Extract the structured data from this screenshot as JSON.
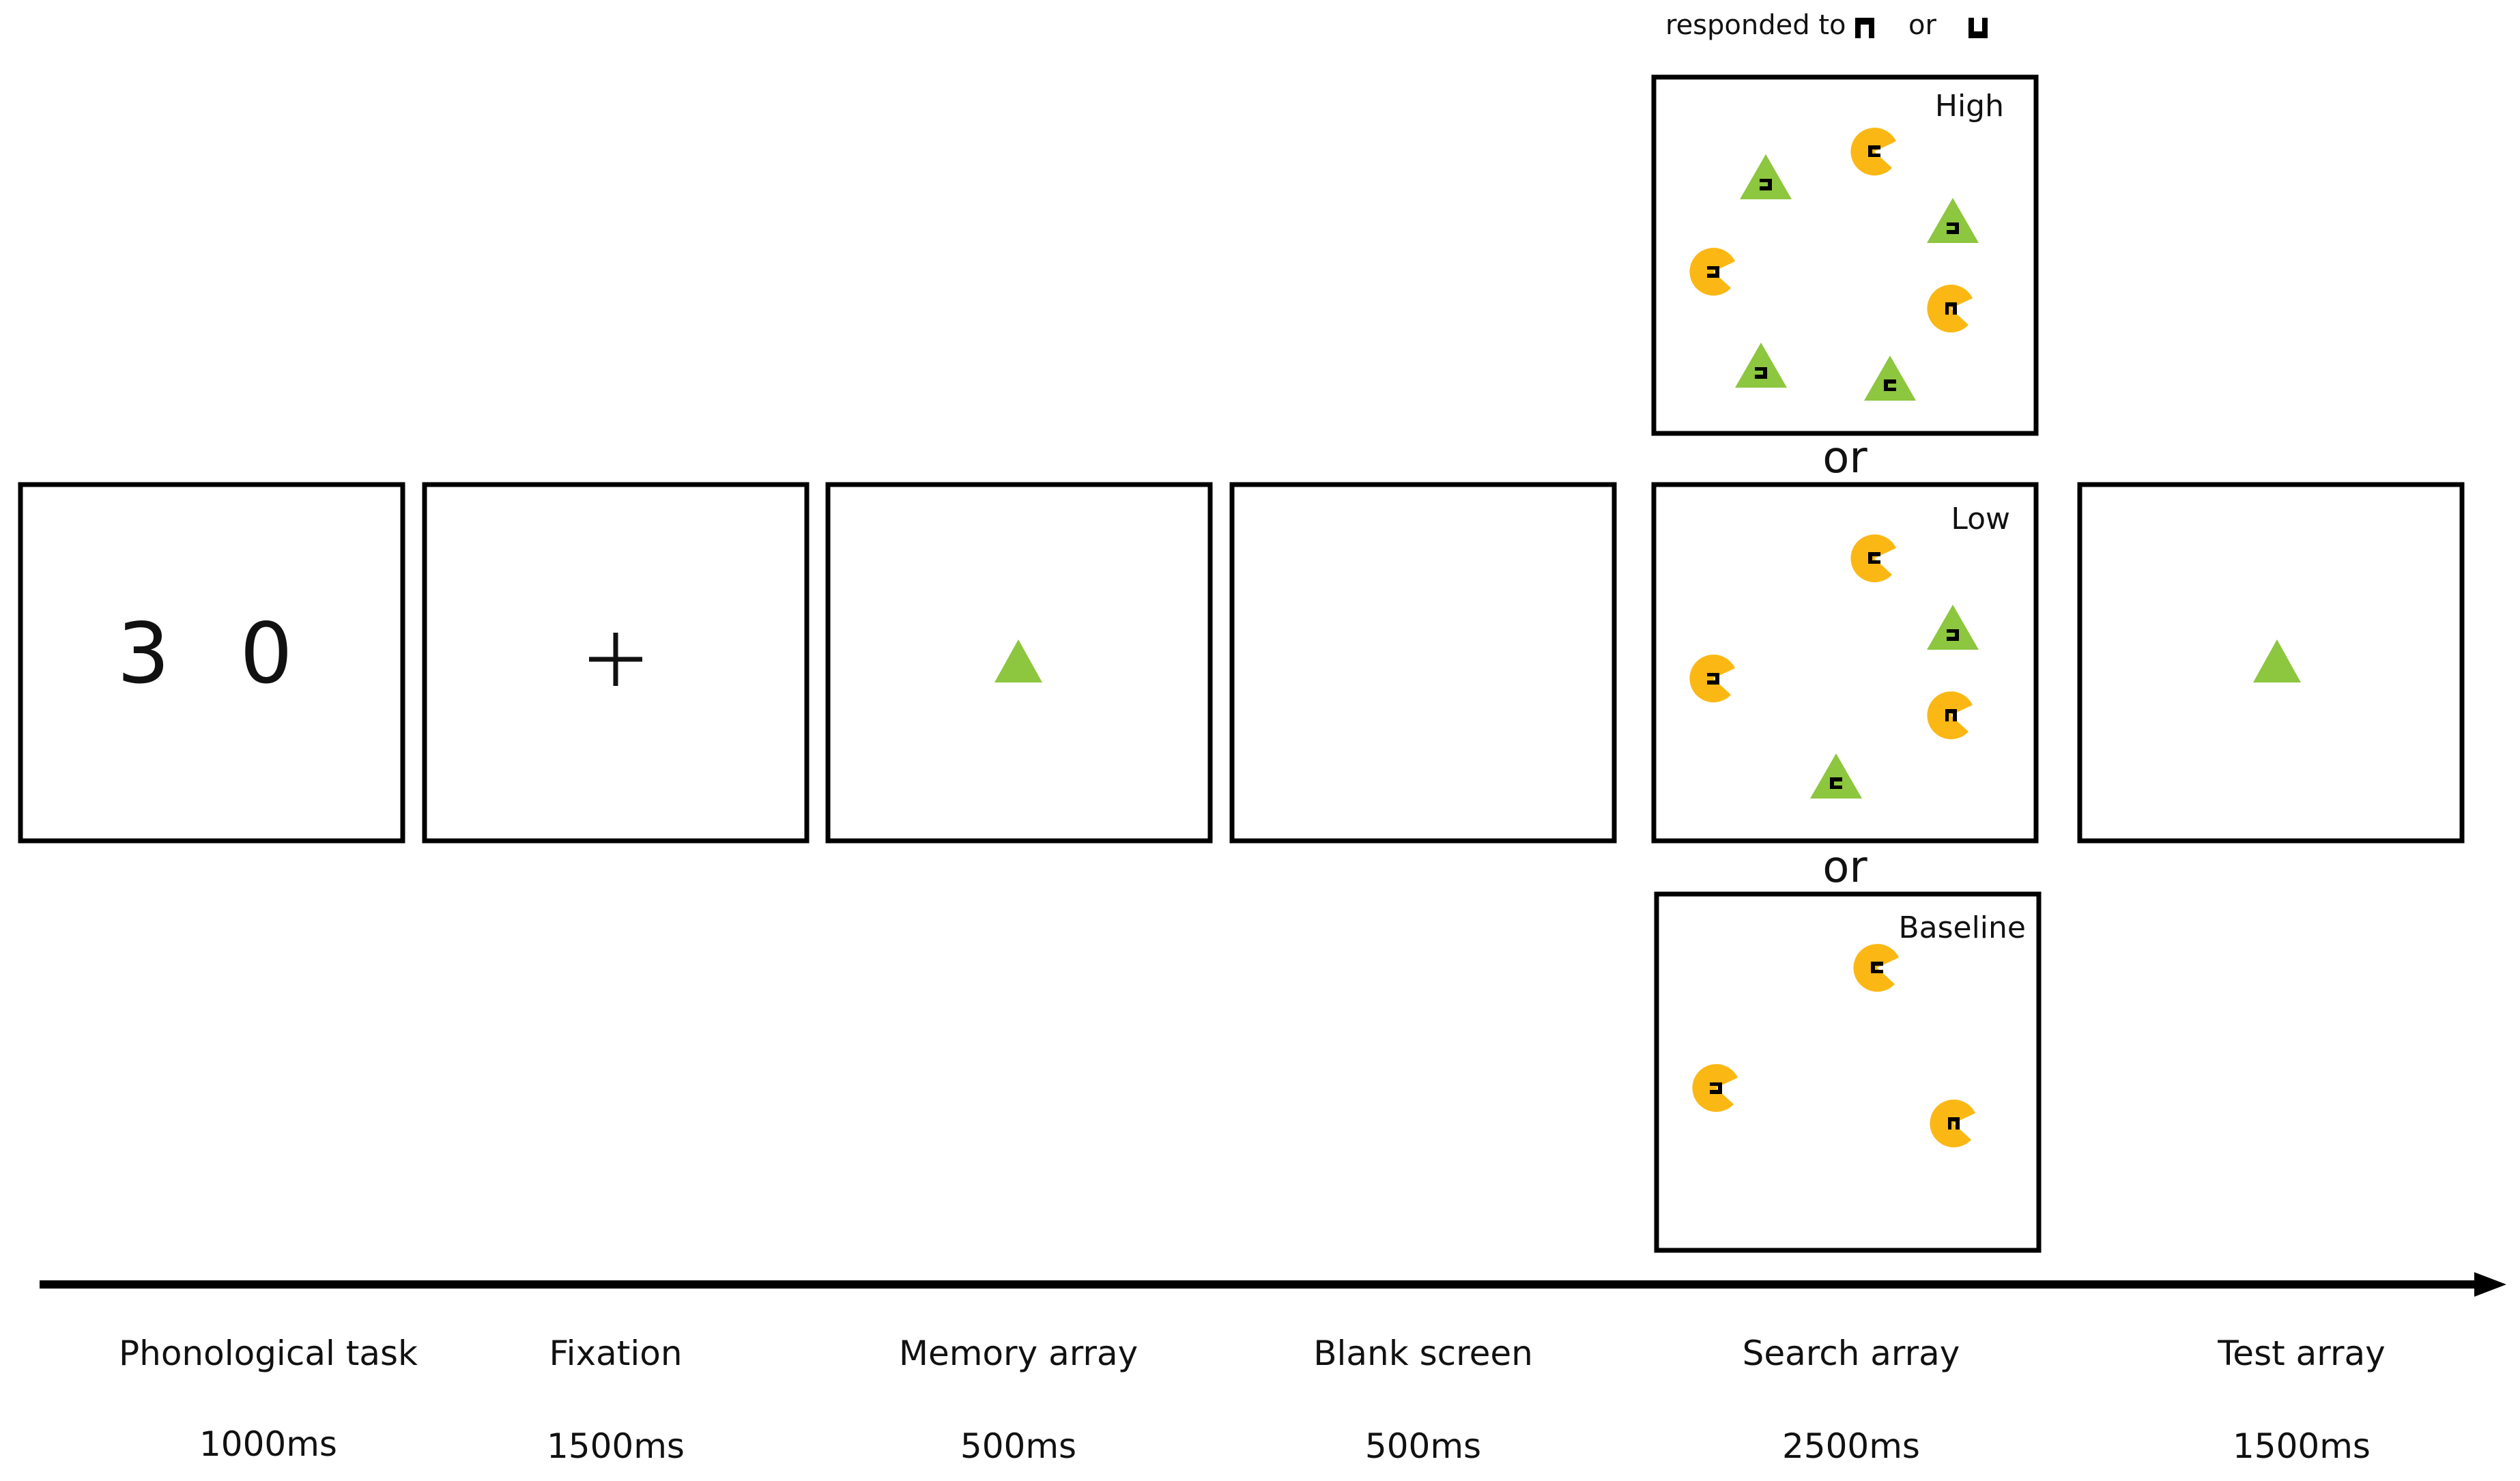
{
  "legend": {
    "prefix": "responded to",
    "connector": "or"
  },
  "separators": {
    "first": "or",
    "second": "or"
  },
  "screens": {
    "phonological": {
      "digits": [
        "3",
        "0"
      ]
    },
    "fixation": {
      "symbol": "+"
    }
  },
  "search_arrays": {
    "high": {
      "label": "High"
    },
    "low": {
      "label": "Low"
    },
    "baseline": {
      "label": "Baseline"
    }
  },
  "timeline": [
    {
      "name": "Phonological task",
      "duration": "1000ms"
    },
    {
      "name": "Fixation",
      "duration": "1500ms"
    },
    {
      "name": "Memory array",
      "duration": "500ms"
    },
    {
      "name": "Blank screen",
      "duration": "500ms"
    },
    {
      "name": "Search array",
      "duration": "2500ms"
    },
    {
      "name": "Test array",
      "duration": "1500ms"
    }
  ],
  "colors": {
    "triangle": "#8dc63f",
    "circle": "#fbb814",
    "stroke": "#000000"
  }
}
